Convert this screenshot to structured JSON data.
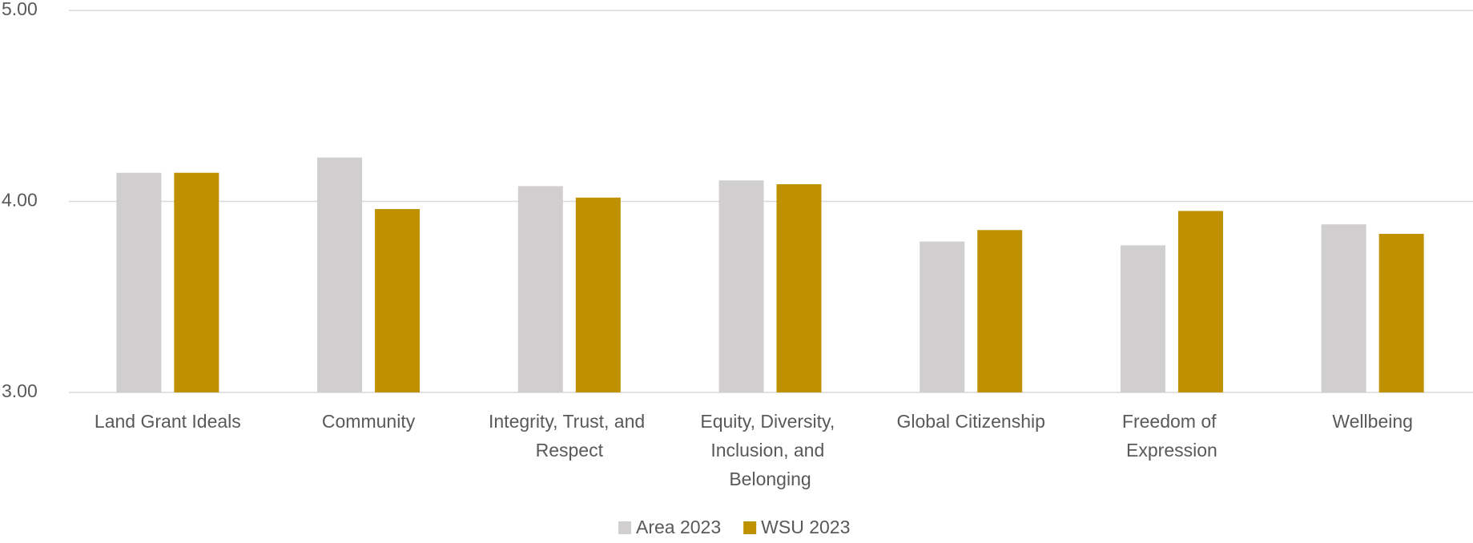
{
  "chart_data": {
    "type": "bar",
    "categories": [
      "Land Grant Ideals",
      "Community",
      "Integrity, Trust, and Respect",
      "Equity, Diversity, Inclusion, and Belonging",
      "Global Citizenship",
      "Freedom of Expression",
      "Wellbeing"
    ],
    "series": [
      {
        "name": "Area 2023",
        "color": "#d0cece",
        "values": [
          4.15,
          4.23,
          4.08,
          4.11,
          3.79,
          3.77,
          3.88
        ]
      },
      {
        "name": "WSU 2023",
        "color": "#bf9000",
        "values": [
          4.15,
          3.96,
          4.02,
          4.09,
          3.85,
          3.95,
          3.83
        ]
      }
    ],
    "ylim": [
      3,
      5
    ],
    "yticks": [
      {
        "value": 3,
        "label": "3.00"
      },
      {
        "value": 4,
        "label": "4.00"
      },
      {
        "value": 5,
        "label": "5.00"
      }
    ],
    "grid": true,
    "legend": "bottom"
  }
}
